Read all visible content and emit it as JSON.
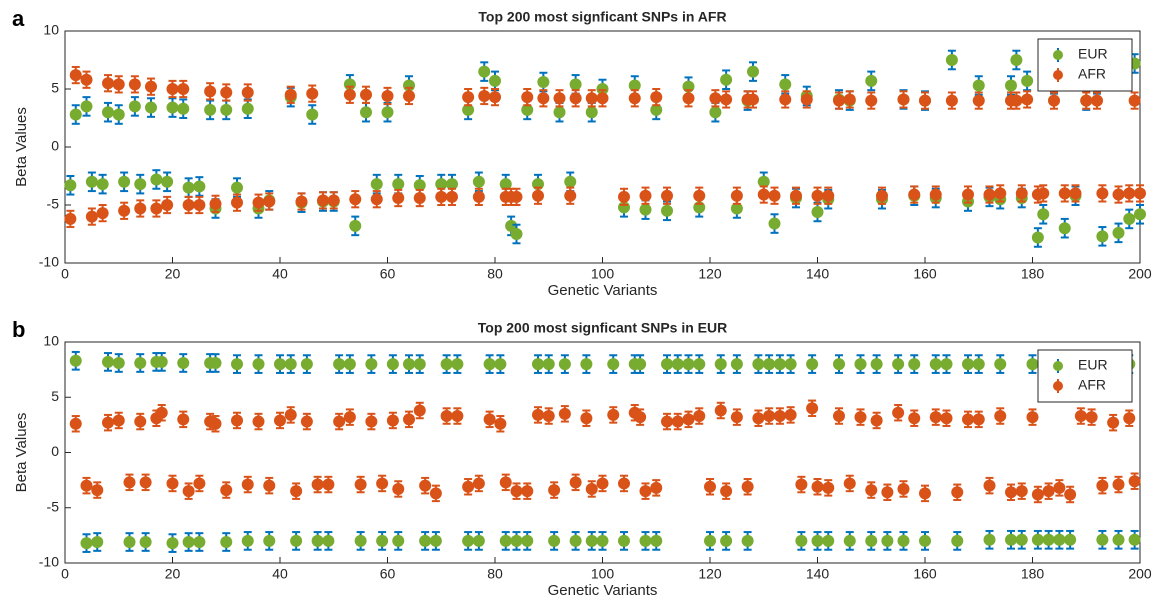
{
  "chart_data": [
    {
      "type": "scatter",
      "panel_label": "a",
      "title": "Top 200 most signficant SNPs in AFR",
      "x_label": "Genetic Variants",
      "y_label": "Beta Values",
      "xlim": [
        0,
        200
      ],
      "xticks": [
        0,
        20,
        40,
        60,
        80,
        100,
        120,
        140,
        160,
        180,
        200
      ],
      "ylim": [
        -10,
        10
      ],
      "yticks": [
        -10,
        -5,
        0,
        5,
        10
      ],
      "legend": "upper-right",
      "x": [
        1,
        2,
        4,
        5,
        7,
        8,
        10,
        11,
        13,
        14,
        16,
        17,
        19,
        20,
        22,
        23,
        25,
        27,
        28,
        30,
        32,
        34,
        36,
        38,
        42,
        44,
        46,
        48,
        50,
        53,
        54,
        56,
        58,
        60,
        62,
        64,
        66,
        70,
        72,
        75,
        77,
        78,
        80,
        82,
        83,
        84,
        86,
        88,
        89,
        92,
        94,
        95,
        98,
        100,
        104,
        106,
        108,
        110,
        112,
        116,
        118,
        121,
        123,
        125,
        127,
        128,
        130,
        132,
        134,
        136,
        138,
        140,
        142,
        144,
        146,
        150,
        152,
        156,
        158,
        160,
        162,
        165,
        168,
        170,
        172,
        174,
        176,
        177,
        178,
        179,
        181,
        182,
        184,
        186,
        188,
        190,
        192,
        193,
        196,
        198,
        199,
        200
      ],
      "series": [
        {
          "name": "EUR",
          "color": "#77ac30",
          "error_color": "#0072bd",
          "error": 0.8,
          "values": [
            -3.3,
            2.8,
            3.5,
            -3.0,
            -3.2,
            3.0,
            2.8,
            -3.0,
            3.5,
            -3.2,
            3.4,
            -2.8,
            -3.0,
            3.4,
            3.3,
            -3.5,
            -3.4,
            3.2,
            -5.3,
            3.2,
            -3.5,
            3.3,
            -5.3,
            -4.6,
            4.3,
            -4.8,
            2.8,
            -4.7,
            -4.7,
            5.4,
            -6.8,
            3.0,
            -3.2,
            3.0,
            -3.2,
            5.3,
            -3.3,
            -3.2,
            -3.2,
            3.2,
            -3.0,
            6.5,
            5.7,
            -3.2,
            -6.8,
            -7.5,
            3.2,
            -3.2,
            5.6,
            3.0,
            -3.0,
            5.4,
            3.0,
            5.0,
            -5.2,
            5.3,
            -5.4,
            3.2,
            -5.5,
            5.2,
            -5.2,
            3.0,
            5.8,
            -5.3,
            4.0,
            6.5,
            -3.0,
            -6.6,
            5.4,
            -4.4,
            4.4,
            -5.6,
            -4.5,
            4.1,
            4.0,
            5.7,
            -4.5,
            4.1,
            -4.2,
            4.0,
            -4.4,
            7.5,
            -4.7,
            5.3,
            -4.3,
            -4.5,
            5.3,
            7.5,
            -4.4,
            5.7,
            -7.8,
            -5.8,
            5.4,
            -7.0,
            -4.2,
            4.0,
            5.4,
            -7.7,
            -7.4,
            -6.2,
            7.2,
            -5.8
          ]
        },
        {
          "name": "AFR",
          "color": "#d95319",
          "error_color": "#d95319",
          "error": 0.7,
          "values": [
            -6.2,
            6.2,
            5.8,
            -6.0,
            -5.7,
            5.5,
            5.4,
            -5.5,
            5.4,
            -5.3,
            5.2,
            -5.3,
            -5.0,
            5.0,
            5.0,
            -5.0,
            -5.0,
            4.8,
            -4.9,
            4.7,
            -4.8,
            4.7,
            -4.8,
            -4.7,
            4.5,
            -4.7,
            4.6,
            -4.6,
            -4.6,
            4.5,
            -4.5,
            4.5,
            -4.5,
            4.4,
            -4.4,
            4.4,
            -4.4,
            -4.3,
            -4.3,
            4.3,
            -4.3,
            4.4,
            4.3,
            -4.3,
            -4.3,
            -4.3,
            4.3,
            -4.2,
            4.2,
            4.2,
            -4.2,
            4.2,
            4.2,
            4.2,
            -4.3,
            4.2,
            -4.2,
            4.3,
            -4.2,
            4.2,
            -4.2,
            4.2,
            4.1,
            -4.2,
            4.1,
            4.1,
            -4.1,
            -4.2,
            4.1,
            -4.2,
            4.1,
            -4.2,
            -4.2,
            4.0,
            4.1,
            4.0,
            -4.2,
            4.1,
            -4.1,
            4.0,
            -4.1,
            4.0,
            -4.1,
            4.0,
            -4.1,
            -4.0,
            4.0,
            4.0,
            -4.0,
            4.1,
            -4.1,
            -4.0,
            4.0,
            -4.0,
            -4.0,
            4.0,
            4.0,
            -4.0,
            -4.1,
            -4.0,
            4.0,
            -4.0
          ]
        }
      ]
    },
    {
      "type": "scatter",
      "panel_label": "b",
      "title": "Top 200 most signficant SNPs in EUR",
      "x_label": "Genetic Variants",
      "y_label": "Beta Values",
      "xlim": [
        0,
        200
      ],
      "xticks": [
        0,
        20,
        40,
        60,
        80,
        100,
        120,
        140,
        160,
        180,
        200
      ],
      "ylim": [
        -10,
        10
      ],
      "yticks": [
        -10,
        -5,
        0,
        5,
        10
      ],
      "legend": "upper-right",
      "x": [
        2,
        4,
        6,
        8,
        10,
        12,
        14,
        15,
        17,
        18,
        20,
        22,
        23,
        25,
        27,
        28,
        30,
        32,
        34,
        36,
        38,
        40,
        42,
        43,
        45,
        47,
        49,
        51,
        53,
        55,
        57,
        59,
        61,
        62,
        64,
        66,
        67,
        69,
        71,
        73,
        75,
        77,
        79,
        81,
        82,
        84,
        86,
        88,
        90,
        91,
        93,
        95,
        97,
        98,
        100,
        102,
        104,
        106,
        107,
        108,
        110,
        112,
        114,
        116,
        118,
        120,
        122,
        123,
        125,
        127,
        129,
        131,
        133,
        135,
        137,
        139,
        140,
        142,
        144,
        146,
        148,
        150,
        151,
        153,
        155,
        156,
        158,
        160,
        162,
        164,
        166,
        168,
        170,
        172,
        174,
        176,
        178,
        180,
        181,
        183,
        185,
        187,
        189,
        191,
        193,
        195,
        196,
        198,
        199
      ],
      "series": [
        {
          "name": "EUR",
          "color": "#77ac30",
          "error_color": "#0072bd",
          "error": 0.8,
          "values": [
            8.3,
            -8.2,
            -8.1,
            8.2,
            8.1,
            -8.1,
            8.1,
            -8.1,
            8.2,
            8.2,
            -8.2,
            8.1,
            -8.1,
            -8.1,
            8.1,
            8.1,
            -8.1,
            8.0,
            -8.0,
            8.0,
            -8.0,
            8.0,
            8.0,
            -8.0,
            8.0,
            -8.0,
            -8.0,
            8.0,
            8.0,
            -8.0,
            8.0,
            -8.0,
            8.0,
            -8.0,
            8.0,
            8.0,
            -8.0,
            -8.0,
            8.0,
            8.0,
            -8.0,
            -8.0,
            8.0,
            8.0,
            -8.0,
            -8.0,
            -8.0,
            8.0,
            8.0,
            -8.0,
            8.0,
            -8.0,
            8.0,
            -8.0,
            -8.0,
            8.0,
            -8.0,
            8.0,
            8.0,
            -8.0,
            -8.0,
            8.0,
            8.0,
            8.0,
            8.0,
            -8.0,
            8.0,
            -8.0,
            8.0,
            -8.0,
            8.0,
            8.0,
            8.0,
            8.0,
            -8.0,
            8.0,
            -8.0,
            -8.0,
            8.0,
            -8.0,
            8.0,
            -8.0,
            8.0,
            -8.0,
            8.0,
            -8.0,
            8.0,
            -8.0,
            8.0,
            8.0,
            -8.0,
            8.0,
            8.0,
            -7.9,
            8.0,
            -7.9,
            -7.9,
            8.0,
            -7.9,
            -7.9,
            -7.9,
            -7.9,
            8.0,
            8.0,
            -7.9,
            8.0,
            -7.9,
            8.0,
            -7.9
          ]
        },
        {
          "name": "AFR",
          "color": "#d95319",
          "error_color": "#d95319",
          "error": 0.7,
          "values": [
            2.6,
            -3.0,
            -3.4,
            2.7,
            2.9,
            -2.7,
            2.8,
            -2.7,
            3.1,
            3.6,
            -2.8,
            3.0,
            -3.5,
            -2.8,
            2.8,
            2.6,
            -3.4,
            2.9,
            -2.9,
            2.8,
            -3.0,
            2.9,
            3.4,
            -3.5,
            2.8,
            -2.9,
            -2.9,
            2.8,
            3.2,
            -2.9,
            2.8,
            -2.8,
            2.9,
            -3.3,
            3.0,
            3.8,
            -3.0,
            -3.7,
            3.3,
            3.3,
            -3.1,
            -2.8,
            3.0,
            2.6,
            -2.7,
            -3.5,
            -3.5,
            3.4,
            3.3,
            -3.4,
            3.5,
            -2.7,
            3.1,
            -3.3,
            -2.8,
            3.4,
            -2.8,
            3.6,
            3.2,
            -3.5,
            -3.2,
            2.8,
            2.8,
            3.0,
            3.3,
            -3.1,
            3.8,
            -3.5,
            3.2,
            -3.1,
            3.1,
            3.3,
            3.3,
            3.4,
            -2.9,
            4.0,
            -3.1,
            -3.2,
            3.3,
            -2.8,
            3.2,
            -3.4,
            2.9,
            -3.6,
            3.6,
            -3.3,
            3.1,
            -3.7,
            3.2,
            3.1,
            -3.6,
            3.0,
            3.0,
            -3.0,
            3.3,
            -3.6,
            -3.5,
            3.2,
            -3.8,
            -3.5,
            -3.2,
            -3.8,
            3.3,
            3.2,
            -3.0,
            2.7,
            -2.9,
            3.1,
            -2.6
          ]
        }
      ]
    }
  ]
}
